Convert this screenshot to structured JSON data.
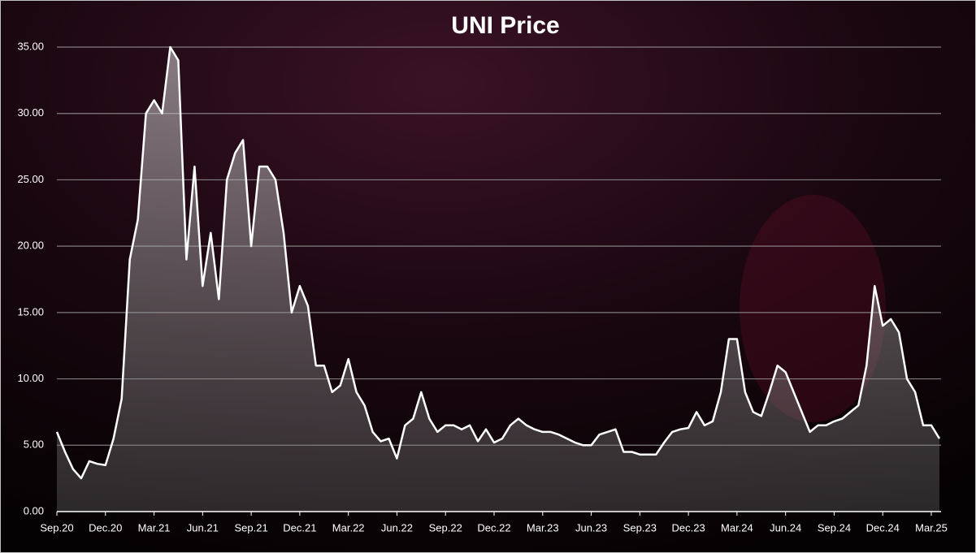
{
  "chart_data": {
    "type": "area",
    "title": "UNI Price",
    "color": "#ffffff",
    "grid": true,
    "x": [
      "Sep.20",
      null,
      null,
      null,
      null,
      null,
      "Dec.20",
      null,
      null,
      null,
      null,
      null,
      "Mar.21",
      null,
      null,
      null,
      null,
      null,
      "Jun.21",
      null,
      null,
      null,
      null,
      null,
      "Sep.21",
      null,
      null,
      null,
      null,
      null,
      "Dec.21",
      null,
      null,
      null,
      null,
      null,
      "Mar.22",
      null,
      null,
      null,
      null,
      null,
      "Jun.22",
      null,
      null,
      null,
      null,
      null,
      "Sep.22",
      null,
      null,
      null,
      null,
      null,
      "Dec.22",
      null,
      null,
      null,
      null,
      null,
      "Mar.23",
      null,
      null,
      null,
      null,
      null,
      "Jun.23",
      null,
      null,
      null,
      null,
      null,
      "Sep.23",
      null,
      null,
      null,
      null,
      null,
      "Dec.23",
      null,
      null,
      null,
      null,
      null,
      "Mar.24",
      null,
      null,
      null,
      null,
      null,
      "Jun.24",
      null,
      null,
      null,
      null,
      null,
      "Sep.24",
      null,
      null,
      null,
      null,
      null,
      "Dec.24",
      null,
      null,
      null,
      null,
      null,
      "Mar.25",
      null
    ],
    "values": [
      6.0,
      4.5,
      3.2,
      2.5,
      3.8,
      3.6,
      3.5,
      5.5,
      8.5,
      19,
      22,
      30,
      31,
      30,
      35,
      34,
      19,
      26,
      17,
      21,
      16,
      25,
      27,
      28,
      20,
      26,
      26,
      25,
      21,
      15,
      17,
      15.5,
      11,
      11,
      9,
      9.5,
      11.5,
      9,
      8,
      6,
      5.3,
      5.5,
      4,
      6.5,
      7,
      9,
      7,
      6,
      6.5,
      6.5,
      6.2,
      6.5,
      5.3,
      6.2,
      5.2,
      5.5,
      6.5,
      7,
      6.5,
      6.2,
      6,
      6,
      5.8,
      5.5,
      5.2,
      5,
      5,
      5.8,
      6,
      6.2,
      4.5,
      4.5,
      4.3,
      4.3,
      4.3,
      5.2,
      6,
      6.2,
      6.3,
      7.5,
      6.5,
      6.8,
      9,
      13,
      13,
      9,
      7.5,
      7.2,
      9,
      11,
      10.5,
      9,
      7.5,
      6,
      6.5,
      6.5,
      6.8,
      7,
      7.5,
      8,
      11,
      17,
      14,
      14.5,
      13.5,
      10,
      9,
      6.5,
      6.5,
      5.5
    ],
    "ylim": [
      0,
      35
    ],
    "yticks": [
      {
        "value": 0,
        "label": "0.00"
      },
      {
        "value": 5,
        "label": "5.00"
      },
      {
        "value": 10,
        "label": "10.00"
      },
      {
        "value": 15,
        "label": "15.00"
      },
      {
        "value": 20,
        "label": "20.00"
      },
      {
        "value": 25,
        "label": "25.00"
      },
      {
        "value": 30,
        "label": "30.00"
      },
      {
        "value": 35,
        "label": "35.00"
      }
    ]
  }
}
